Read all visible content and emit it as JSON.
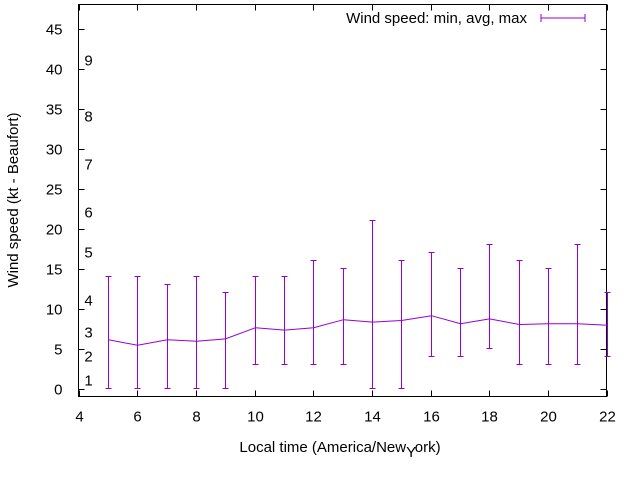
{
  "chart_data": {
    "type": "line",
    "title": "",
    "xlabel": "Local time (America/New York)",
    "xlabel_parts": [
      "Local time (America/New",
      "Y",
      "ork)"
    ],
    "ylabel": "Wind speed (kt - Beaufort)",
    "xlim": [
      4,
      22
    ],
    "ylim": [
      -1,
      48
    ],
    "xticks": [
      4,
      6,
      8,
      10,
      12,
      14,
      16,
      18,
      20,
      22
    ],
    "yticks": [
      0,
      5,
      10,
      15,
      20,
      25,
      30,
      35,
      40,
      45
    ],
    "beaufort_labels": [
      {
        "label": "1",
        "value": 1
      },
      {
        "label": "2",
        "value": 4
      },
      {
        "label": "3",
        "value": 7
      },
      {
        "label": "4",
        "value": 11
      },
      {
        "label": "5",
        "value": 17
      },
      {
        "label": "6",
        "value": 22
      },
      {
        "label": "7",
        "value": 28
      },
      {
        "label": "8",
        "value": 34
      },
      {
        "label": "9",
        "value": 41
      }
    ],
    "grid": false,
    "legend": {
      "position": "top-right",
      "entries": [
        "Wind speed: min, avg, max"
      ]
    },
    "series": [
      {
        "name": "Wind speed: min, avg, max",
        "color": "#9400d3",
        "x": [
          5,
          6,
          7,
          8,
          9,
          10,
          11,
          12,
          13,
          14,
          15,
          16,
          17,
          18,
          19,
          20,
          21,
          22
        ],
        "avg": [
          6.1,
          5.4,
          6.1,
          5.9,
          6.2,
          7.6,
          7.3,
          7.6,
          8.6,
          8.3,
          8.5,
          9.1,
          8.1,
          8.7,
          8.0,
          8.1,
          8.1,
          7.9
        ],
        "min": [
          0,
          0,
          0,
          0,
          0,
          3,
          3,
          3,
          3,
          0,
          0,
          4,
          4,
          5,
          3,
          3,
          3,
          4
        ],
        "max": [
          14,
          14,
          13,
          14,
          12,
          14,
          14,
          16,
          15,
          21,
          16,
          17,
          15,
          18,
          16,
          15,
          18,
          12
        ]
      }
    ]
  }
}
